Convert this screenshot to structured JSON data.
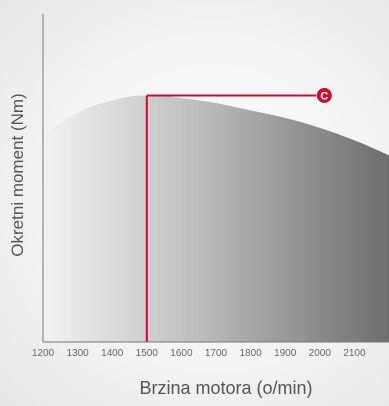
{
  "chart_data": {
    "type": "area",
    "xlabel": "Brzina motora (o/min)",
    "ylabel": "Okretni moment (Nm)",
    "x_ticks": [
      1200,
      1300,
      1400,
      1500,
      1600,
      1700,
      1800,
      1900,
      2000,
      2100
    ],
    "x_tick_labels": [
      "1200",
      "1300",
      "1400",
      "1500",
      "1600",
      "1700",
      "1800",
      "1900",
      "2000",
      "2100"
    ],
    "xlim": [
      1200,
      2200
    ],
    "ylim": [
      0,
      100
    ],
    "grid": false,
    "y_ticks_shown": false,
    "series": [
      {
        "x": [
          1200,
          1250,
          1300,
          1350,
          1400,
          1450,
          1500,
          1550,
          1600,
          1700,
          1800,
          1900,
          2000,
          2100,
          2200
        ],
        "values": [
          83,
          88,
          92,
          95,
          97,
          98.6,
          99,
          98.8,
          98,
          96,
          93,
          90,
          86,
          81,
          75
        ],
        "fill_gradient": [
          "#f2f2f2",
          "#bdbdbd",
          "#6e6e6e"
        ]
      }
    ],
    "annotations": [
      {
        "label": "C",
        "x": 1500,
        "y": 99,
        "line_end_x": 1990,
        "color": "#c8102e"
      }
    ]
  }
}
